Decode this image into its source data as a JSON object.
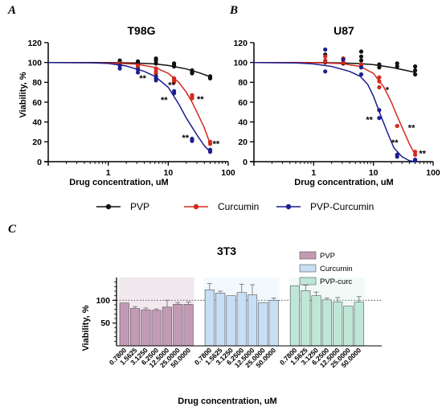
{
  "chart_data": [
    {
      "type": "scatter",
      "panel_label": "A",
      "title": "T98G",
      "xlabel": "Drug concentration, uM",
      "ylabel": "Viability, %",
      "xscale": "log",
      "xlim": [
        0.1,
        100
      ],
      "ylim": [
        0,
        120
      ],
      "xticks": [
        1,
        10,
        100
      ],
      "yticks": [
        0,
        20,
        40,
        60,
        80,
        100,
        120
      ],
      "series": [
        {
          "name": "PVP",
          "color": "#111111",
          "x": [
            1.5625,
            1.5625,
            1.5625,
            3.125,
            3.125,
            3.125,
            6.25,
            6.25,
            6.25,
            12.5,
            12.5,
            12.5,
            25,
            25,
            25,
            50,
            50,
            50
          ],
          "y": [
            100,
            102,
            98,
            101,
            99,
            97,
            104,
            102,
            99,
            99,
            97,
            96,
            92,
            90,
            89,
            86,
            85,
            84
          ],
          "curve": [
            [
              0.1,
              100
            ],
            [
              1,
              99.9
            ],
            [
              3,
              99.4
            ],
            [
              6,
              98.5
            ],
            [
              10,
              97
            ],
            [
              20,
              93.5
            ],
            [
              35,
              89
            ],
            [
              50,
              85.5
            ]
          ]
        },
        {
          "name": "Curcumin",
          "color": "#d42a1e",
          "x": [
            1.5625,
            1.5625,
            3.125,
            3.125,
            6.25,
            6.25,
            6.25,
            12.5,
            12.5,
            12.5,
            25,
            25,
            25,
            50,
            50
          ],
          "y": [
            99,
            97,
            97,
            95,
            94,
            91,
            89,
            84,
            82,
            80,
            67,
            66,
            64,
            20,
            18
          ],
          "curve": [
            [
              0.1,
              100
            ],
            [
              1,
              99.6
            ],
            [
              3,
              98.3
            ],
            [
              6,
              95
            ],
            [
              10,
              89
            ],
            [
              15,
              80
            ],
            [
              20,
              70
            ],
            [
              25,
              60
            ],
            [
              30,
              50
            ],
            [
              40,
              34
            ],
            [
              50,
              18
            ]
          ]
        },
        {
          "name": "PVP-Curcumin",
          "color": "#1b1f8f",
          "x": [
            1.5625,
            1.5625,
            3.125,
            3.125,
            6.25,
            6.25,
            6.25,
            12.5,
            12.5,
            25,
            25,
            50,
            50
          ],
          "y": [
            97,
            94,
            93,
            90,
            86,
            84,
            82,
            71,
            69,
            23,
            21,
            12,
            10
          ],
          "curve": [
            [
              0.1,
              100
            ],
            [
              0.5,
              99.7
            ],
            [
              1,
              99
            ],
            [
              2,
              96.5
            ],
            [
              4,
              91
            ],
            [
              6,
              86
            ],
            [
              10,
              75
            ],
            [
              15,
              58
            ],
            [
              20,
              44
            ],
            [
              30,
              27
            ],
            [
              40,
              16
            ],
            [
              50,
              10
            ]
          ]
        }
      ],
      "annotations": [
        {
          "text": "**",
          "x": 3.3,
          "y": 86
        },
        {
          "text": "**",
          "x": 10,
          "y": 79
        },
        {
          "text": "**",
          "x": 7.5,
          "y": 64
        },
        {
          "text": "**",
          "x": 30,
          "y": 65
        },
        {
          "text": "**",
          "x": 17,
          "y": 26
        },
        {
          "text": "**",
          "x": 55,
          "y": 20
        }
      ]
    },
    {
      "type": "scatter",
      "panel_label": "B",
      "title": "U87",
      "xlabel": "Drug concentration, uM",
      "ylabel": "",
      "xscale": "log",
      "xlim": [
        0.1,
        100
      ],
      "ylim": [
        0,
        120
      ],
      "xticks": [
        1,
        10,
        100
      ],
      "yticks": [
        0,
        20,
        40,
        60,
        80,
        100,
        120
      ],
      "series": [
        {
          "name": "PVP",
          "color": "#111111",
          "x": [
            1.5625,
            1.5625,
            3.125,
            3.125,
            3.125,
            6.25,
            6.25,
            6.25,
            12.5,
            12.5,
            25,
            25,
            50,
            50,
            50
          ],
          "y": [
            108,
            100,
            104,
            100,
            99,
            111,
            106,
            102,
            98,
            95,
            99,
            96,
            96,
            92,
            88
          ],
          "curve": [
            [
              0.1,
              100
            ],
            [
              1,
              99.9
            ],
            [
              3,
              99.5
            ],
            [
              6,
              98.8
            ],
            [
              10,
              97.8
            ],
            [
              20,
              95
            ],
            [
              35,
              92
            ],
            [
              50,
              90
            ]
          ]
        },
        {
          "name": "Curcumin",
          "color": "#d42a1e",
          "x": [
            1.5625,
            1.5625,
            3.125,
            3.125,
            6.25,
            6.25,
            12.5,
            12.5,
            12.5,
            25,
            50,
            50
          ],
          "y": [
            106,
            102,
            104,
            100,
            98,
            96,
            85,
            81,
            75,
            36,
            10,
            7
          ],
          "curve": [
            [
              0.1,
              100
            ],
            [
              1,
              99.8
            ],
            [
              3,
              98.8
            ],
            [
              6,
              96
            ],
            [
              10,
              89
            ],
            [
              15,
              75
            ],
            [
              20,
              60
            ],
            [
              25,
              46
            ],
            [
              30,
              35
            ],
            [
              40,
              18
            ],
            [
              50,
              7
            ]
          ]
        },
        {
          "name": "PVP-Curcumin",
          "color": "#1b1f8f",
          "x": [
            1.5625,
            1.5625,
            3.125,
            6.25,
            6.25,
            12.5,
            12.5,
            25,
            25,
            50,
            50
          ],
          "y": [
            113,
            91,
            103,
            95,
            88,
            52,
            44,
            7,
            5,
            2,
            1
          ],
          "curve": [
            [
              0.1,
              100
            ],
            [
              0.5,
              99.6
            ],
            [
              1,
              98.5
            ],
            [
              2,
              96
            ],
            [
              4,
              91
            ],
            [
              6,
              86
            ],
            [
              8,
              78
            ],
            [
              10,
              66
            ],
            [
              13,
              48
            ],
            [
              17,
              30
            ],
            [
              22,
              14
            ],
            [
              30,
              5
            ],
            [
              40,
              1
            ],
            [
              50,
              0
            ]
          ]
        }
      ],
      "annotations": [
        {
          "text": "*",
          "x": 16,
          "y": 74
        },
        {
          "text": "**",
          "x": 7.5,
          "y": 44
        },
        {
          "text": "**",
          "x": 38,
          "y": 36
        },
        {
          "text": "**",
          "x": 20,
          "y": 21
        },
        {
          "text": "**",
          "x": 58,
          "y": 10
        }
      ]
    },
    {
      "type": "bar",
      "panel_label": "C",
      "title": "3T3",
      "xlabel": "Drug concentration, uM",
      "ylabel": "Viability, %",
      "ylim": [
        0,
        150
      ],
      "yticks": [
        50,
        100
      ],
      "reference_line": 100,
      "categories": [
        "0.7800",
        "1.5625",
        "3.1250",
        "6.2500",
        "12.5000",
        "25.0000",
        "50.0000"
      ],
      "series": [
        {
          "name": "PVP",
          "color": "#c39ab5",
          "values": [
            94,
            82,
            79,
            78,
            85,
            91,
            91
          ],
          "errors": [
            0,
            4,
            4,
            3,
            15,
            4,
            5
          ]
        },
        {
          "name": "Curcumin",
          "color": "#c7def4",
          "values": [
            123,
            116,
            110,
            117,
            112,
            95,
            100
          ],
          "errors": [
            14,
            4,
            0,
            18,
            22,
            0,
            5
          ]
        },
        {
          "name": "PVP-curc",
          "color": "#bfe7d8",
          "values": [
            132,
            121,
            110,
            101,
            96,
            87,
            96
          ],
          "errors": [
            0,
            12,
            8,
            4,
            10,
            0,
            12
          ]
        }
      ]
    }
  ],
  "legend_main": [
    {
      "name": "PVP",
      "color": "#111111"
    },
    {
      "name": "Curcumin",
      "color": "#d42a1e"
    },
    {
      "name": "PVP-Curcumin",
      "color": "#1b1f8f"
    }
  ]
}
